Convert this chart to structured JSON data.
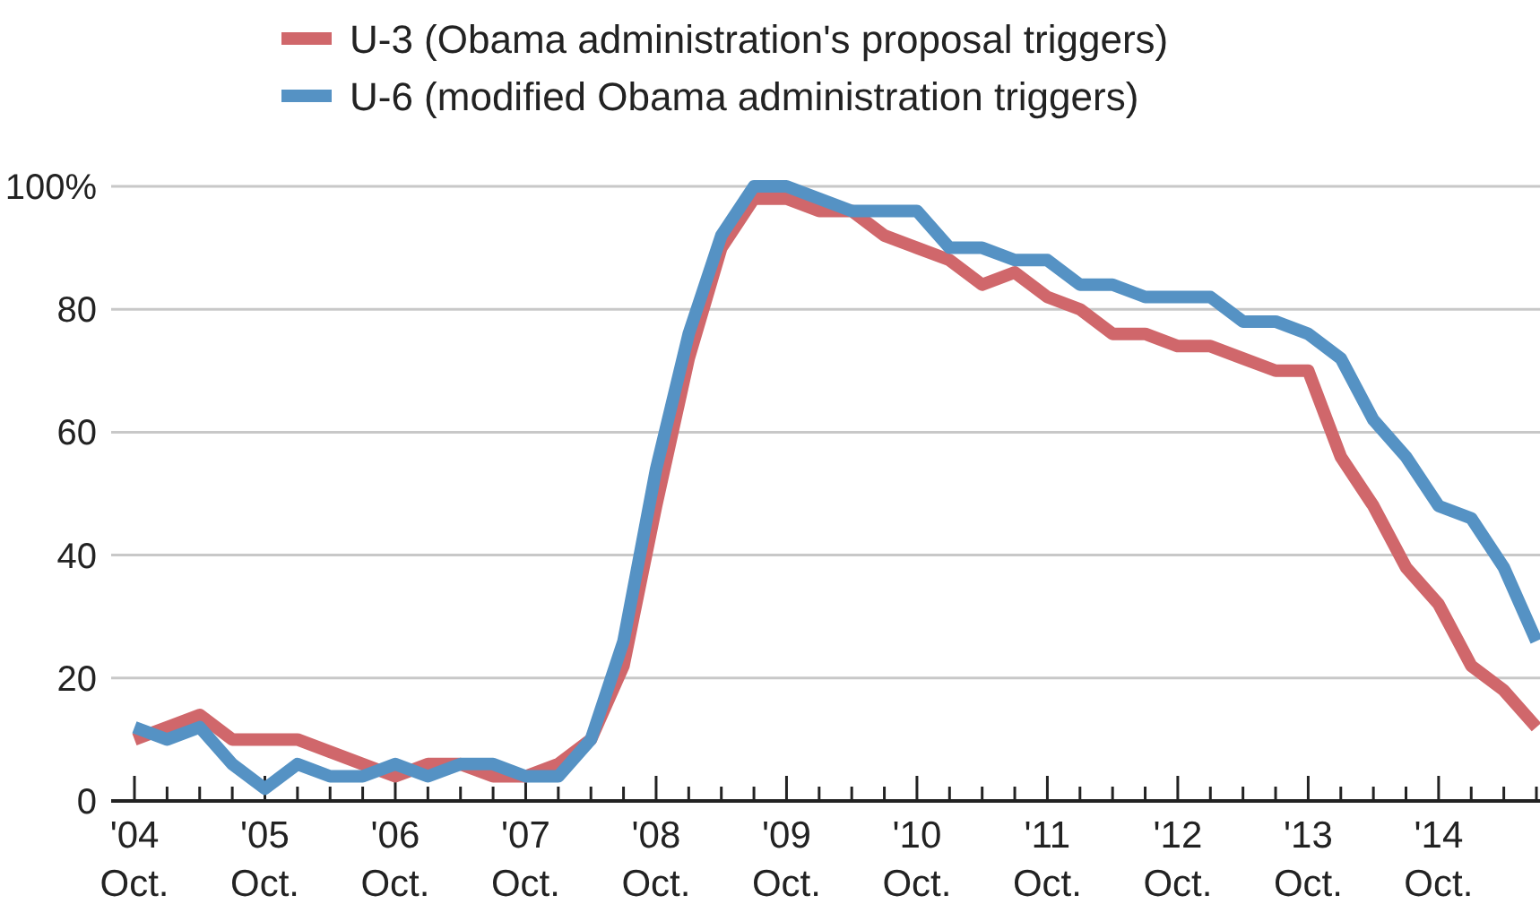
{
  "chart_data": {
    "type": "line",
    "categories": [
      "'04 Oct.",
      null,
      null,
      null,
      "'05 Oct.",
      null,
      null,
      null,
      "'06 Oct.",
      null,
      null,
      null,
      "'07 Oct.",
      null,
      null,
      null,
      "'08 Oct.",
      null,
      null,
      null,
      "'09 Oct.",
      null,
      null,
      null,
      "'10 Oct.",
      null,
      null,
      null,
      "'11 Oct.",
      null,
      null,
      null,
      "'12 Oct.",
      null,
      null,
      null,
      "'13 Oct.",
      null,
      null,
      null,
      "'14 Oct.",
      null,
      null,
      null
    ],
    "series": [
      {
        "name": "U-3 (Obama administration's proposal triggers)",
        "color": "#d0676b",
        "values": [
          10,
          12,
          14,
          10,
          10,
          10,
          8,
          6,
          4,
          6,
          6,
          4,
          4,
          6,
          10,
          22,
          48,
          72,
          90,
          98,
          98,
          96,
          96,
          92,
          90,
          88,
          84,
          86,
          82,
          80,
          76,
          76,
          74,
          74,
          72,
          70,
          70,
          56,
          48,
          38,
          32,
          22,
          18,
          12
        ]
      },
      {
        "name": "U-6 (modified Obama administration triggers)",
        "color": "#5592c4",
        "values": [
          12,
          10,
          12,
          6,
          2,
          6,
          4,
          4,
          6,
          4,
          6,
          6,
          4,
          4,
          10,
          26,
          54,
          76,
          92,
          100,
          100,
          98,
          96,
          96,
          96,
          90,
          90,
          88,
          88,
          84,
          84,
          82,
          82,
          82,
          78,
          78,
          76,
          72,
          62,
          56,
          48,
          46,
          38,
          26
        ]
      }
    ],
    "ylim": [
      0,
      100
    ],
    "yticks": [
      0,
      20,
      40,
      60,
      80,
      {
        "value": 100,
        "label": "100%"
      }
    ],
    "grid": "y",
    "legend": "top",
    "marker": "none",
    "line_style": "solid"
  }
}
